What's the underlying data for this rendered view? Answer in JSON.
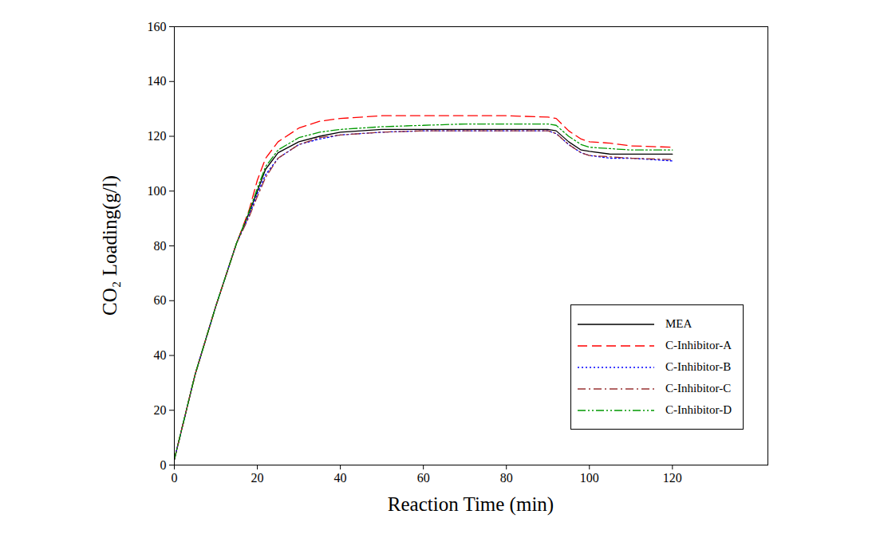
{
  "chart_data": {
    "type": "line",
    "x_label": "Reaction Time (min)",
    "y_label": "CO₂ Loading(g/l)",
    "x": [
      0,
      5,
      10,
      15,
      18,
      20,
      22,
      25,
      30,
      35,
      40,
      50,
      60,
      70,
      80,
      90,
      92,
      95,
      98,
      100,
      105,
      110,
      120
    ],
    "series": [
      {
        "name": "MEA",
        "color": "#000000",
        "line_style": "solid",
        "values": [
          2,
          33,
          58,
          81,
          92,
          100,
          108,
          114,
          118,
          120,
          121.5,
          122.5,
          122.5,
          122.5,
          122.5,
          122.5,
          122,
          118,
          115,
          114.5,
          113.5,
          113.5,
          113.5
        ]
      },
      {
        "name": "C-Inhibitor-A",
        "color": "#ff0000",
        "line_style": "dashed",
        "values": [
          2,
          33,
          58,
          81,
          93,
          104,
          112,
          118,
          123,
          125.5,
          126.5,
          127.5,
          127.5,
          127.5,
          127.5,
          127,
          126.5,
          122,
          119,
          118,
          117.5,
          116.5,
          116
        ]
      },
      {
        "name": "C-Inhibitor-B",
        "color": "#0000ff",
        "line_style": "dotted",
        "values": [
          2,
          33,
          58,
          81,
          91,
          99,
          106,
          112,
          117,
          119,
          120.5,
          121.5,
          122,
          122,
          122,
          122,
          121,
          117,
          114,
          113,
          112,
          112,
          111
        ]
      },
      {
        "name": "C-Inhibitor-C",
        "color": "#993333",
        "line_style": "dashdot",
        "values": [
          2,
          33,
          58,
          81,
          90.5,
          98,
          105,
          112,
          117,
          119.5,
          120.5,
          121.5,
          122,
          122,
          122,
          122,
          121,
          117,
          114,
          113,
          112.5,
          112,
          111.5
        ]
      },
      {
        "name": "C-Inhibitor-D",
        "color": "#009900",
        "line_style": "dashdotdot",
        "values": [
          2,
          33,
          58,
          81,
          92.5,
          101,
          109,
          115,
          119.5,
          121.5,
          122.5,
          123.5,
          124,
          124.5,
          124.5,
          124.5,
          124,
          120,
          117,
          116,
          115.5,
          115,
          115
        ]
      }
    ],
    "xlim": [
      0,
      143
    ],
    "ylim": [
      0,
      160
    ],
    "xticks": [
      0,
      20,
      40,
      60,
      80,
      100,
      120
    ],
    "yticks": [
      0,
      20,
      40,
      60,
      80,
      100,
      120,
      140,
      160
    ],
    "grid": false,
    "legend": "lower right"
  }
}
